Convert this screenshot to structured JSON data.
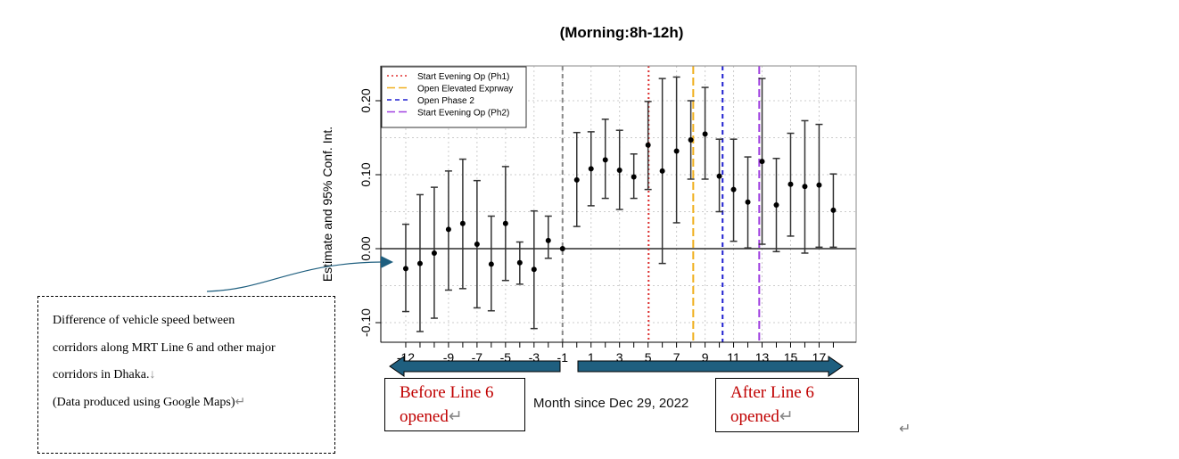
{
  "chart_data": {
    "type": "scatter",
    "subtype": "point estimates with 95% confidence interval error bars",
    "title": "(Morning:8h-12h)",
    "xlabel": "Month since Dec 29, 2022",
    "ylabel": "Estimate and 95% Conf. Int.",
    "xlim": [
      -13.75,
      19.6
    ],
    "ylim": [
      -0.1265,
      0.247
    ],
    "xticks": [
      -12,
      -11,
      -10,
      -9,
      -8,
      -7,
      -6,
      -5,
      -4,
      -3,
      -2,
      -1,
      0,
      1,
      2,
      3,
      4,
      5,
      6,
      7,
      8,
      9,
      10,
      11,
      12,
      13,
      14,
      15,
      16,
      17,
      18
    ],
    "xtick_labels": [
      "-12",
      "-9",
      "-7",
      "-5",
      "-3",
      "-1",
      "1",
      "3",
      "5",
      "7",
      "9",
      "11",
      "13",
      "15",
      "17"
    ],
    "xtick_label_values": [
      -12,
      -9,
      -7,
      -5,
      -3,
      -1,
      1,
      3,
      5,
      7,
      9,
      11,
      13,
      15,
      17
    ],
    "yticks": [
      -0.1,
      0.0,
      0.1,
      0.2
    ],
    "ytick_labels": [
      "-0.10",
      "0.00",
      "0.10",
      "0.20"
    ],
    "grid": true,
    "reference_hline": 0,
    "x": [
      -12,
      -11,
      -10,
      -9,
      -8,
      -7,
      -6,
      -5,
      -4,
      -3,
      -2,
      -1,
      0,
      1,
      2,
      3,
      4,
      5,
      6,
      7,
      8,
      9,
      10,
      11,
      12,
      13,
      14,
      15,
      16,
      17,
      18
    ],
    "estimate": [
      -0.027,
      -0.02,
      -0.006,
      0.026,
      0.034,
      0.006,
      -0.021,
      0.034,
      -0.019,
      -0.028,
      0.011,
      0,
      0.093,
      0.108,
      0.12,
      0.106,
      0.097,
      0.14,
      0.105,
      0.132,
      0.147,
      0.155,
      0.098,
      0.08,
      0.063,
      0.118,
      0.059,
      0.087,
      0.084,
      0.086,
      0.052
    ],
    "ci_low": [
      -0.085,
      -0.112,
      -0.094,
      -0.056,
      -0.054,
      -0.08,
      -0.084,
      -0.043,
      -0.048,
      -0.108,
      -0.013,
      null,
      0.03,
      0.058,
      0.068,
      0.053,
      0.068,
      0.08,
      -0.02,
      0.035,
      0.094,
      0.094,
      0.05,
      0.01,
      0.001,
      0.006,
      -0.004,
      0.017,
      -0.006,
      0.002,
      0.002
    ],
    "ci_high": [
      0.033,
      0.073,
      0.083,
      0.105,
      0.121,
      0.092,
      0.044,
      0.111,
      0.009,
      0.051,
      0.044,
      null,
      0.157,
      0.158,
      0.175,
      0.16,
      0.128,
      0.199,
      0.23,
      0.232,
      0.2,
      0.218,
      0.148,
      0.148,
      0.124,
      0.23,
      0.122,
      0.156,
      0.173,
      0.168,
      0.101
    ],
    "vlines": [
      {
        "x": -1,
        "color": "#888888",
        "style": "dashed",
        "name": ""
      },
      {
        "x": 5.04,
        "color": "#e03030",
        "style": "dotted",
        "name": "Start Evening Op (Ph1)"
      },
      {
        "x": 8.17,
        "color": "#f0b020",
        "style": "longdash",
        "name": "Open Elevated Exprway"
      },
      {
        "x": 10.23,
        "color": "#2020d0",
        "style": "dashed",
        "name": "Open Phase 2"
      },
      {
        "x": 12.8,
        "color": "#a040e0",
        "style": "longdash",
        "name": "Start Evening Op (Ph2)"
      }
    ],
    "legend_placement": "top-left",
    "legend": [
      "Start Evening Op (Ph1)",
      "Open Elevated Exprway",
      "Open Phase 2",
      "Start Evening Op (Ph2)"
    ]
  },
  "annotations": {
    "before": {
      "line1": "Before Line 6",
      "line2": "opened",
      "mark": "↵"
    },
    "after": {
      "line1": "After Line 6",
      "line2": "opened",
      "mark": "↵"
    },
    "note": {
      "lines": [
        "Difference of vehicle speed between",
        "corridors along MRT Line 6 and other major",
        "corridors in Dhaka.",
        "(Data produced using Google Maps)"
      ],
      "marks": [
        "↓",
        "↵"
      ]
    },
    "paragraph_mark": "↵",
    "arrow_color": "#1f5f7f",
    "text_color": "#c00000"
  }
}
